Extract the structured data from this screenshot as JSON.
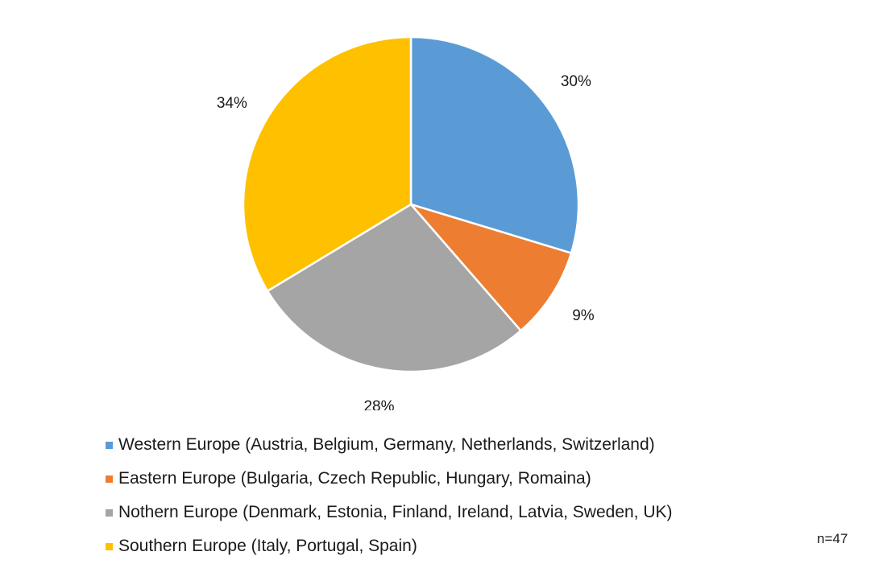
{
  "chart_data": {
    "type": "pie",
    "title": "",
    "categories": [
      "Western Europe (Austria, Belgium, Germany, Netherlands, Switzerland)",
      "Eastern Europe (Bulgaria, Czech Republic, Hungary, Romaina)",
      "Nothern Europe (Denmark, Estonia, Finland, Ireland, Latvia, Sweden, UK)",
      "Southern Europe (Italy, Portugal, Spain)"
    ],
    "values": [
      30,
      9,
      28,
      34
    ],
    "data_labels": [
      "30%",
      "9%",
      "28%",
      "34%"
    ],
    "colors": [
      "#5b9bd5",
      "#ed7d31",
      "#a5a5a5",
      "#ffc000"
    ],
    "legend_position": "bottom",
    "start_angle": "12 o'clock, clockwise"
  },
  "legend": {
    "items": [
      {
        "label": "Western Europe (Austria, Belgium, Germany, Netherlands, Switzerland)",
        "color": "#5b9bd5"
      },
      {
        "label": "Eastern Europe (Bulgaria, Czech Republic, Hungary, Romaina)",
        "color": "#ed7d31"
      },
      {
        "label": "Nothern Europe (Denmark, Estonia, Finland, Ireland, Latvia, Sweden, UK)",
        "color": "#a5a5a5"
      },
      {
        "label": "Southern Europe (Italy, Portugal, Spain)",
        "color": "#ffc000"
      }
    ]
  },
  "footnote": "n=47"
}
